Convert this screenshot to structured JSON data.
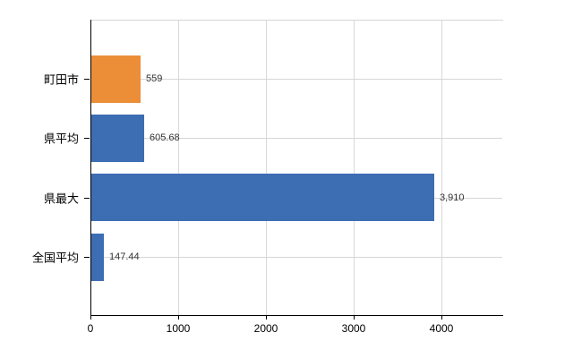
{
  "chart_data": {
    "type": "bar",
    "orientation": "horizontal",
    "title": "",
    "xlabel": "",
    "ylabel": "",
    "categories": [
      "町田市",
      "県平均",
      "県最大",
      "全国平均"
    ],
    "values": [
      559,
      605.68,
      3910,
      147.44
    ],
    "value_labels": [
      "559",
      "605.68",
      "3,910",
      "147.44"
    ],
    "bar_colors": [
      "#ec8e38",
      "#3d6db3",
      "#3d6db3",
      "#3d6db3"
    ],
    "x_ticks": [
      0,
      1000,
      2000,
      3000,
      4000
    ],
    "x_tick_labels": [
      "0",
      "1000",
      "2000",
      "3000",
      "4000"
    ],
    "xlim": [
      0,
      4694
    ],
    "grid": true,
    "legend": "none",
    "colors": {
      "highlight_bar": "#ec8e38",
      "default_bar": "#3d6db3",
      "grid": "#d6d6d6",
      "axis": "#000000",
      "tick_text": "#000000",
      "category_text": "#000000",
      "value_text": "#333333",
      "background": "#ffffff"
    }
  }
}
